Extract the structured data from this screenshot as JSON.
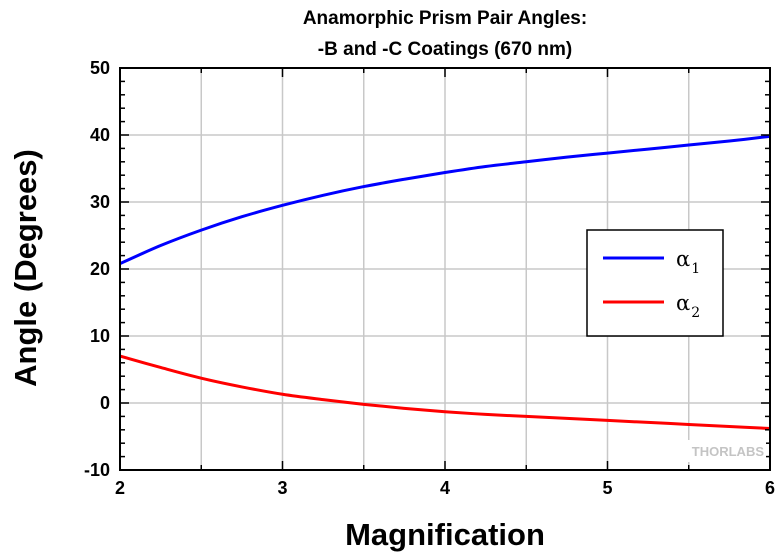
{
  "chart_data": {
    "type": "line",
    "title": [
      "Anamorphic Prism Pair Angles:",
      "-B and -C Coatings (670 nm)"
    ],
    "xlabel": "Magnification",
    "ylabel": "Angle (Degrees)",
    "xlim": [
      2,
      6
    ],
    "ylim": [
      -10,
      50
    ],
    "xticks": [
      2,
      3,
      4,
      5,
      6
    ],
    "xtick_labels": [
      "2",
      "3",
      "4",
      "5",
      "6"
    ],
    "yticks": [
      -10,
      0,
      10,
      20,
      30,
      40,
      50
    ],
    "ytick_labels": [
      "-10",
      "0",
      "10",
      "20",
      "30",
      "40",
      "50"
    ],
    "grid": true,
    "legend_position": "right",
    "series": [
      {
        "name": "α1",
        "label_main": "α",
        "label_sub": "1",
        "color": "#0000ff",
        "x": [
          2.0,
          2.25,
          2.5,
          2.75,
          3.0,
          3.25,
          3.5,
          3.75,
          4.0,
          4.25,
          4.5,
          4.75,
          5.0,
          5.25,
          5.5,
          5.75,
          6.0
        ],
        "y": [
          20.8,
          23.5,
          25.8,
          27.8,
          29.5,
          31.0,
          32.3,
          33.4,
          34.4,
          35.3,
          36.0,
          36.7,
          37.3,
          37.9,
          38.5,
          39.1,
          39.8
        ]
      },
      {
        "name": "α2",
        "label_main": "α",
        "label_sub": "2",
        "color": "#ff0000",
        "x": [
          2.0,
          2.25,
          2.5,
          2.75,
          3.0,
          3.25,
          3.5,
          3.75,
          4.0,
          4.25,
          4.5,
          4.75,
          5.0,
          5.25,
          5.5,
          5.75,
          6.0
        ],
        "y": [
          7.0,
          5.3,
          3.7,
          2.4,
          1.3,
          0.5,
          -0.2,
          -0.8,
          -1.3,
          -1.7,
          -2.0,
          -2.3,
          -2.6,
          -2.9,
          -3.2,
          -3.5,
          -3.8
        ]
      }
    ]
  },
  "watermark": "THORLABS"
}
